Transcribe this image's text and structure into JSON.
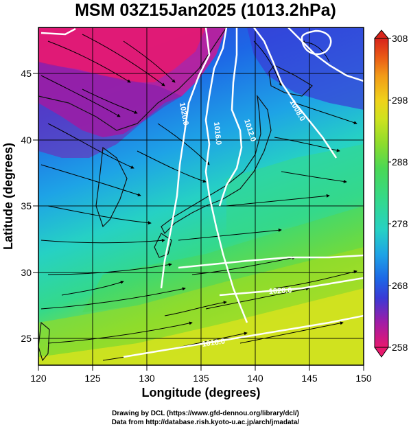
{
  "title": "MSM 03Z15Jan2025 (1013.2hPa)",
  "axes": {
    "xlabel": "Longitude (degrees)",
    "ylabel": "Latitude  (degrees)",
    "xlim": [
      120,
      150
    ],
    "ylim": [
      22.5,
      48
    ],
    "xticks": [
      "120",
      "125",
      "130",
      "135",
      "140",
      "145",
      "150"
    ],
    "yticks": [
      "25",
      "30",
      "35",
      "40",
      "45"
    ]
  },
  "colorbar": {
    "range": [
      258,
      308
    ],
    "labels": [
      "308",
      "298",
      "288",
      "278",
      "268",
      "258"
    ],
    "colors": [
      "#e8196e",
      "#c11d9a",
      "#7a1fb0",
      "#3a3ad6",
      "#1d66e6",
      "#1ea3e6",
      "#26d1c4",
      "#34d98a",
      "#4bd855",
      "#8edc2c",
      "#cfe21f",
      "#f0d21a",
      "#f29a18",
      "#ea5a16",
      "#d8241b"
    ]
  },
  "isobars": [
    {
      "label": "1020.0",
      "lon": 133.5,
      "lat": 40.5
    },
    {
      "label": "1016.0",
      "lon": 136.8,
      "lat": 40.0
    },
    {
      "label": "1012.0",
      "lon": 139.5,
      "lat": 40.4
    },
    {
      "label": "1008.0",
      "lon": 143.0,
      "lat": 42.0
    },
    {
      "label": "1020.0",
      "lon": 140.8,
      "lat": 29.3
    },
    {
      "label": "1016.0",
      "lon": 135.5,
      "lat": 24.5
    }
  ],
  "credits": {
    "line1": "Drawing by DCL (https://www.gfd-dennou.org/library/dcl/)",
    "line2": "Data from http://database.rish.kyoto-u.ac.jp/arch/jmadata/"
  }
}
